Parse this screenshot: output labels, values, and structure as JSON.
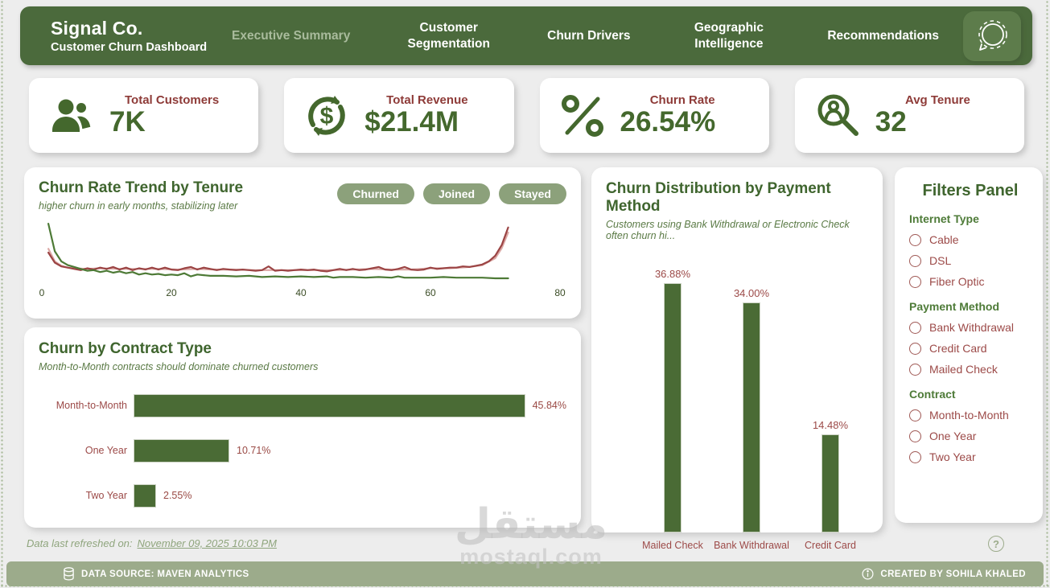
{
  "nav": {
    "brand_title": "Signal Co.",
    "brand_subtitle": "Customer Churn Dashboard",
    "tabs": [
      {
        "label": "Executive Summary",
        "active": true,
        "wrap": false
      },
      {
        "label": "Customer Segmentation",
        "active": false,
        "wrap": true
      },
      {
        "label": "Churn Drivers",
        "active": false,
        "wrap": false
      },
      {
        "label": "Geographic Intelligence",
        "active": false,
        "wrap": true
      },
      {
        "label": "Recommendations",
        "active": false,
        "wrap": false
      }
    ],
    "logo_icon": "signal-speech-bubble-icon"
  },
  "kpis": [
    {
      "icon": "customers-icon",
      "title": "Total Customers",
      "value": "7K"
    },
    {
      "icon": "revenue-cycle-icon",
      "title": "Total Revenue",
      "value": "$21.4M"
    },
    {
      "icon": "percent-icon",
      "title": "Churn Rate",
      "value": "26.54%"
    },
    {
      "icon": "tenure-search-icon",
      "title": "Avg Tenure",
      "value": "32"
    }
  ],
  "trend_chart": {
    "title": "Churn Rate Trend by Tenure",
    "subtitle": "higher churn in early months, stabilizing later",
    "legend": [
      "Churned",
      "Joined",
      "Stayed"
    ],
    "x_ticks": [
      0,
      20,
      40,
      60,
      80
    ]
  },
  "contract_chart": {
    "title": "Churn by Contract Type",
    "subtitle": "Month-to-Month contracts should dominate churned customers",
    "categories": [
      "Month-to-Month",
      "One Year",
      "Two Year"
    ],
    "values": [
      45.84,
      10.71,
      2.55
    ],
    "labels": [
      "45.84%",
      "10.71%",
      "2.55%"
    ]
  },
  "payment_chart": {
    "title": "Churn Distribution by Payment Method",
    "subtitle": "Customers using Bank Withdrawal or Electronic Check often churn hi...",
    "categories": [
      "Mailed Check",
      "Bank Withdrawal",
      "Credit Card"
    ],
    "values": [
      36.88,
      34.0,
      14.48
    ],
    "labels": [
      "36.88%",
      "34.00%",
      "14.48%"
    ]
  },
  "filters": {
    "title": "Filters Panel",
    "groups": [
      {
        "label": "Internet Type",
        "options": [
          "Cable",
          "DSL",
          "Fiber Optic"
        ]
      },
      {
        "label": "Payment Method",
        "options": [
          "Bank Withdrawal",
          "Credit Card",
          "Mailed Check"
        ]
      },
      {
        "label": "Contract",
        "options": [
          "Month-to-Month",
          "One Year",
          "Two Year"
        ]
      }
    ]
  },
  "footer": {
    "refreshed_label": "Data last refreshed on:",
    "refreshed_value": "November 09, 2025 10:03 PM",
    "data_source": "DATA SOURCE: MAVEN ANALYTICS",
    "created_by": "CREATED BY SOHILA KHALED",
    "help_glyph": "?"
  },
  "watermark": {
    "arabic": "مستقل",
    "latin": "mostaql.com"
  },
  "colors": {
    "nav_green": "#4b6a3c",
    "sage": "#8ca17b",
    "footer_sage": "#9cab8b",
    "heading_green": "#3f652e",
    "kpi_value_green": "#44682d",
    "kpi_title_maroon": "#8e3b38",
    "label_maroon": "#9c4a48",
    "bar_green": "#4a6b35",
    "line_churned": "#9b4444",
    "line_joined": "#dba8a5",
    "line_stayed": "#4d7a36"
  },
  "chart_data": [
    {
      "type": "line",
      "title": "Churn Rate Trend by Tenure",
      "subtitle": "higher churn in early months, stabilizing later",
      "xlim": [
        0,
        80
      ],
      "x_ticks": [
        0,
        20,
        40,
        60,
        80
      ],
      "y_note": "no y-axis shown; values are relative plot-scale 0-100",
      "legend_position": "top-right",
      "series": [
        {
          "name": "Joined",
          "color": "#dba8a5",
          "points": [
            [
              1,
              56
            ],
            [
              2,
              36
            ],
            [
              3,
              29
            ],
            [
              4,
              26
            ],
            [
              5,
              25
            ],
            [
              7,
              24
            ],
            [
              9,
              25
            ],
            [
              12,
              24
            ],
            [
              15,
              24
            ],
            [
              18,
              24
            ],
            [
              21,
              23
            ],
            [
              24,
              24
            ],
            [
              27,
              23
            ],
            [
              30,
              23
            ],
            [
              33,
              22
            ],
            [
              36,
              22
            ],
            [
              39,
              22
            ],
            [
              42,
              22
            ],
            [
              45,
              22
            ],
            [
              48,
              23
            ],
            [
              51,
              24
            ],
            [
              54,
              23
            ],
            [
              57,
              23
            ],
            [
              60,
              25
            ],
            [
              63,
              25
            ],
            [
              66,
              27
            ],
            [
              68,
              30
            ],
            [
              70,
              41
            ],
            [
              71,
              57
            ],
            [
              72,
              82
            ]
          ]
        },
        {
          "name": "Churned",
          "color": "#9b4444",
          "points": [
            [
              1,
              50
            ],
            [
              2,
              34
            ],
            [
              3,
              28
            ],
            [
              4,
              26
            ],
            [
              5,
              24
            ],
            [
              6,
              22
            ],
            [
              7,
              25
            ],
            [
              8,
              23
            ],
            [
              9,
              26
            ],
            [
              10,
              24
            ],
            [
              11,
              27
            ],
            [
              12,
              23
            ],
            [
              13,
              26
            ],
            [
              14,
              22
            ],
            [
              15,
              25
            ],
            [
              16,
              23
            ],
            [
              17,
              26
            ],
            [
              18,
              23
            ],
            [
              19,
              26
            ],
            [
              20,
              23
            ],
            [
              21,
              22
            ],
            [
              22,
              25
            ],
            [
              23,
              27
            ],
            [
              24,
              23
            ],
            [
              25,
              26
            ],
            [
              26,
              24
            ],
            [
              27,
              22
            ],
            [
              28,
              24
            ],
            [
              29,
              23
            ],
            [
              30,
              22
            ],
            [
              31,
              23
            ],
            [
              32,
              22
            ],
            [
              33,
              21
            ],
            [
              34,
              22
            ],
            [
              35,
              28
            ],
            [
              36,
              21
            ],
            [
              37,
              22
            ],
            [
              38,
              21
            ],
            [
              39,
              22
            ],
            [
              40,
              23
            ],
            [
              41,
              22
            ],
            [
              42,
              23
            ],
            [
              43,
              21
            ],
            [
              44,
              20
            ],
            [
              45,
              22
            ],
            [
              46,
              24
            ],
            [
              47,
              22
            ],
            [
              48,
              24
            ],
            [
              49,
              22
            ],
            [
              50,
              23
            ],
            [
              51,
              25
            ],
            [
              52,
              27
            ],
            [
              53,
              23
            ],
            [
              54,
              22
            ],
            [
              55,
              24
            ],
            [
              56,
              27
            ],
            [
              57,
              23
            ],
            [
              58,
              22
            ],
            [
              59,
              23
            ],
            [
              60,
              26
            ],
            [
              61,
              24
            ],
            [
              62,
              25
            ],
            [
              63,
              26
            ],
            [
              64,
              26
            ],
            [
              65,
              28
            ],
            [
              66,
              27
            ],
            [
              67,
              29
            ],
            [
              68,
              31
            ],
            [
              69,
              36
            ],
            [
              70,
              45
            ],
            [
              71,
              62
            ],
            [
              72,
              90
            ]
          ]
        },
        {
          "name": "Stayed",
          "color": "#4d7a36",
          "points": [
            [
              1,
              96
            ],
            [
              2,
              52
            ],
            [
              3,
              36
            ],
            [
              4,
              30
            ],
            [
              5,
              27
            ],
            [
              6,
              24
            ],
            [
              7,
              21
            ],
            [
              8,
              22
            ],
            [
              9,
              19
            ],
            [
              10,
              21
            ],
            [
              11,
              18
            ],
            [
              12,
              20
            ],
            [
              13,
              17
            ],
            [
              14,
              19
            ],
            [
              15,
              15
            ],
            [
              16,
              17
            ],
            [
              17,
              15
            ],
            [
              18,
              16
            ],
            [
              19,
              14
            ],
            [
              20,
              15
            ],
            [
              21,
              14
            ],
            [
              22,
              17
            ],
            [
              23,
              12
            ],
            [
              24,
              15
            ],
            [
              25,
              14
            ],
            [
              26,
              13
            ],
            [
              28,
              13
            ],
            [
              30,
              12
            ],
            [
              32,
              13
            ],
            [
              34,
              11
            ],
            [
              36,
              12
            ],
            [
              38,
              11
            ],
            [
              40,
              12
            ],
            [
              42,
              11
            ],
            [
              44,
              12
            ],
            [
              45,
              10
            ],
            [
              46,
              11
            ],
            [
              48,
              11
            ],
            [
              50,
              10
            ],
            [
              52,
              11
            ],
            [
              54,
              10
            ],
            [
              55,
              12
            ],
            [
              56,
              10
            ],
            [
              58,
              10
            ],
            [
              60,
              10
            ],
            [
              62,
              11
            ],
            [
              64,
              10
            ],
            [
              66,
              10
            ],
            [
              68,
              10
            ],
            [
              70,
              9
            ],
            [
              72,
              9
            ]
          ]
        }
      ]
    },
    {
      "type": "bar",
      "orientation": "horizontal",
      "title": "Churn by Contract Type",
      "subtitle": "Month-to-Month contracts should dominate churned customers",
      "categories": [
        "Month-to-Month",
        "One Year",
        "Two Year"
      ],
      "values": [
        45.84,
        10.71,
        2.55
      ],
      "data_labels": [
        "45.84%",
        "10.71%",
        "2.55%"
      ]
    },
    {
      "type": "bar",
      "orientation": "vertical",
      "title": "Churn Distribution by Payment Method",
      "subtitle": "Customers using Bank Withdrawal or Electronic Check often churn hi...",
      "categories": [
        "Mailed Check",
        "Bank Withdrawal",
        "Credit Card"
      ],
      "values": [
        36.88,
        34.0,
        14.48
      ],
      "data_labels": [
        "36.88%",
        "34.00%",
        "14.48%"
      ]
    }
  ]
}
